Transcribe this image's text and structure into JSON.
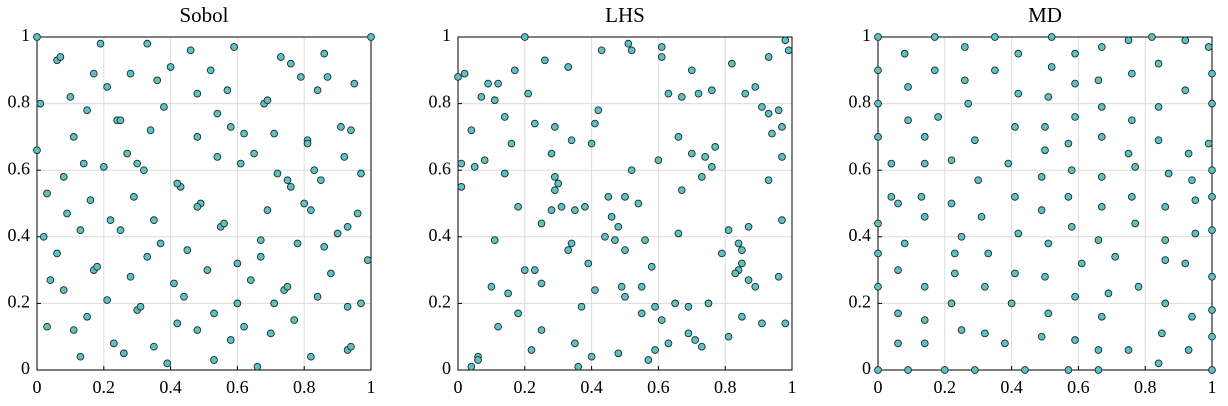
{
  "chart_data": [
    {
      "type": "scatter",
      "title": "Sobol",
      "color": "#62c0c0",
      "grid": true,
      "xlim": [
        0,
        1
      ],
      "ylim": [
        0,
        1
      ],
      "xticks": [
        0,
        0.2,
        0.4,
        0.6,
        0.8,
        1
      ],
      "yticks": [
        0,
        0.2,
        0.4,
        0.6,
        0.8,
        1
      ],
      "x": [
        0,
        1,
        0.06,
        0.07,
        0.19,
        0.33,
        0.46,
        0.59,
        0.73,
        0.76,
        0.86,
        0.01,
        0.1,
        0.17,
        0.21,
        0.28,
        0.36,
        0.4,
        0.52,
        0.48,
        0.57,
        0.68,
        0.69,
        0.79,
        0.84,
        0.87,
        0.95,
        0,
        0.11,
        0.15,
        0.24,
        0.25,
        0.2,
        0.38,
        0.34,
        0.3,
        0.32,
        0.48,
        0.54,
        0.58,
        0.62,
        0.71,
        0.81,
        0.81,
        0.91,
        0.94,
        0.92,
        0.03,
        0.08,
        0.14,
        0.27,
        0.43,
        0.42,
        0.54,
        0.61,
        0.65,
        0.75,
        0.72,
        0.76,
        0.83,
        0.85,
        0.97,
        0.09,
        0.16,
        0.29,
        0.35,
        0.49,
        0.48,
        0.55,
        0.56,
        0.69,
        0.8,
        0.82,
        0.96,
        0.02,
        0.13,
        0.25,
        0.22,
        0.37,
        0.45,
        0.6,
        0.67,
        0.67,
        0.78,
        0.86,
        0.9,
        0.93,
        0.06,
        0.17,
        0.18,
        0.33,
        0.28,
        0.51,
        0.64,
        0.74,
        0.75,
        0.88,
        0.99,
        0.04,
        0.08,
        0.21,
        0.3,
        0.31,
        0.41,
        0.44,
        0.53,
        0.6,
        0.71,
        0.84,
        0.93,
        0.97,
        0.03,
        0.15,
        0.11,
        0.42,
        0.48,
        0.62,
        0.7,
        0.77,
        0.13,
        0.23,
        0.26,
        0.35,
        0.39,
        0.53,
        0.58,
        0.66,
        0.82,
        0.93,
        0.94
      ],
      "values": [
        1,
        1,
        0.93,
        0.94,
        0.98,
        0.98,
        0.96,
        0.97,
        0.94,
        0.92,
        0.95,
        0.8,
        0.82,
        0.89,
        0.85,
        0.89,
        0.87,
        0.91,
        0.9,
        0.83,
        0.84,
        0.8,
        0.81,
        0.88,
        0.84,
        0.88,
        0.86,
        0.66,
        0.7,
        0.78,
        0.75,
        0.75,
        0.61,
        0.79,
        0.72,
        0.62,
        0.6,
        0.7,
        0.77,
        0.73,
        0.71,
        0.71,
        0.69,
        0.68,
        0.73,
        0.72,
        0.64,
        0.53,
        0.58,
        0.62,
        0.65,
        0.55,
        0.56,
        0.64,
        0.62,
        0.65,
        0.57,
        0.59,
        0.55,
        0.6,
        0.57,
        0.59,
        0.47,
        0.51,
        0.52,
        0.45,
        0.5,
        0.49,
        0.43,
        0.44,
        0.48,
        0.5,
        0.48,
        0.47,
        0.4,
        0.42,
        0.42,
        0.45,
        0.38,
        0.36,
        0.32,
        0.34,
        0.39,
        0.38,
        0.37,
        0.41,
        0.43,
        0.35,
        0.3,
        0.31,
        0.34,
        0.28,
        0.3,
        0.27,
        0.24,
        0.25,
        0.29,
        0.33,
        0.27,
        0.24,
        0.21,
        0.18,
        0.19,
        0.26,
        0.22,
        0.17,
        0.2,
        0.2,
        0.22,
        0.19,
        0.2,
        0.13,
        0.16,
        0.12,
        0.14,
        0.12,
        0.13,
        0.11,
        0.15,
        0.04,
        0.08,
        0.05,
        0.07,
        0.02,
        0.03,
        0.09,
        0.01,
        0.04,
        0.06,
        0.07
      ]
    },
    {
      "type": "scatter",
      "title": "LHS",
      "color": "#62c0c0",
      "grid": true,
      "xlim": [
        0,
        1
      ],
      "ylim": [
        0,
        1
      ],
      "xticks": [
        0,
        0.2,
        0.4,
        0.6,
        0.8,
        1
      ],
      "yticks": [
        0,
        0.2,
        0.4,
        0.6,
        0.8,
        1
      ],
      "x": [
        0,
        0.02,
        0.2,
        0.51,
        0.52,
        0.61,
        0.61,
        0.98,
        0.99,
        0.04,
        0.07,
        0.09,
        0.11,
        0.12,
        0.17,
        0.14,
        0.21,
        0.23,
        0.26,
        0.33,
        0.29,
        0.34,
        0.41,
        0.42,
        0.4,
        0.43,
        0.63,
        0.67,
        0.7,
        0.72,
        0.76,
        0.82,
        0.86,
        0.93,
        0.89,
        0.96,
        0.94,
        0.97,
        0.6,
        0.66,
        0.7,
        0.74,
        0.77,
        0.73,
        0.76,
        0.91,
        0.93,
        0.97,
        0.93,
        0.01,
        0.01,
        0.05,
        0.08,
        0.14,
        0.16,
        0.18,
        0.28,
        0.29,
        0.29,
        0.3,
        0.28,
        0.31,
        0.35,
        0.38,
        0.25,
        0.45,
        0.46,
        0.5,
        0.54,
        0.52,
        0.44,
        0.48,
        0.47,
        0.5,
        0.56,
        0.58,
        0.67,
        0.66,
        0.11,
        0.33,
        0.34,
        0.39,
        0.2,
        0.23,
        0.25,
        0.15,
        0.1,
        0.49,
        0.5,
        0.55,
        0.41,
        0.37,
        0.55,
        0.59,
        0.65,
        0.69,
        0.75,
        0.81,
        0.87,
        0.84,
        0.85,
        0.84,
        0.83,
        0.85,
        0.87,
        0.79,
        0.97,
        0.96,
        0.89,
        0.85,
        0.91,
        0.98,
        0.81,
        0.12,
        0.18,
        0.22,
        0.25,
        0.35,
        0.36,
        0.4,
        0.04,
        0.06,
        0.06,
        0.48,
        0.57,
        0.61,
        0.59,
        0.63,
        0.69,
        0.71,
        0.73
      ],
      "values": [
        0.88,
        0.89,
        1,
        0.98,
        0.96,
        0.97,
        0.94,
        0.99,
        0.96,
        0.72,
        0.82,
        0.86,
        0.81,
        0.86,
        0.9,
        0.76,
        0.83,
        0.74,
        0.93,
        0.91,
        0.73,
        0.69,
        0.74,
        0.78,
        0.68,
        0.96,
        0.83,
        0.82,
        0.9,
        0.83,
        0.84,
        0.92,
        0.83,
        0.94,
        0.85,
        0.78,
        0.71,
        0.73,
        0.63,
        0.7,
        0.65,
        0.64,
        0.67,
        0.58,
        0.61,
        0.79,
        0.77,
        0.64,
        0.57,
        0.62,
        0.55,
        0.61,
        0.63,
        0.59,
        0.68,
        0.49,
        0.65,
        0.58,
        0.54,
        0.56,
        0.48,
        0.49,
        0.48,
        0.49,
        0.44,
        0.52,
        0.46,
        0.52,
        0.5,
        0.6,
        0.4,
        0.43,
        0.39,
        0.36,
        0.39,
        0.31,
        0.54,
        0.41,
        0.39,
        0.36,
        0.38,
        0.32,
        0.3,
        0.3,
        0.26,
        0.23,
        0.25,
        0.25,
        0.22,
        0.25,
        0.24,
        0.19,
        0.17,
        0.19,
        0.2,
        0.19,
        0.2,
        0.42,
        0.43,
        0.38,
        0.36,
        0.3,
        0.29,
        0.32,
        0.27,
        0.35,
        0.45,
        0.28,
        0.25,
        0.16,
        0.14,
        0.14,
        0.1,
        0.13,
        0.17,
        0.06,
        0.12,
        0.08,
        0.01,
        0.04,
        0.01,
        0.04,
        0.03,
        0.05,
        0.03,
        0.15,
        0.06,
        0.08,
        0.11,
        0.09,
        0.07
      ]
    },
    {
      "type": "scatter",
      "title": "MD",
      "color": "#62c0c0",
      "grid": true,
      "xlim": [
        0,
        1
      ],
      "ylim": [
        0,
        1
      ],
      "xticks": [
        0,
        0.2,
        0.4,
        0.6,
        0.8,
        1
      ],
      "yticks": [
        0,
        0.2,
        0.4,
        0.6,
        0.8,
        1
      ],
      "x": [
        0,
        0,
        0,
        0,
        0,
        0,
        0,
        0,
        0.08,
        0.09,
        0.09,
        0.08,
        0.06,
        0.06,
        0.06,
        0.09,
        0.17,
        0.17,
        0.18,
        0.14,
        0.14,
        0.04,
        0.04,
        0.13,
        0.26,
        0.26,
        0.27,
        0.22,
        0.22,
        0.23,
        0.25,
        0.35,
        0.35,
        0.42,
        0.42,
        0.52,
        0.52,
        0.51,
        0.59,
        0.59,
        0.67,
        0.66,
        0.76,
        0.75,
        0.82,
        0.84,
        0.92,
        0.99,
        1,
        1,
        0.99,
        1,
        1,
        1,
        1,
        1,
        1,
        1,
        0.92,
        0.84,
        0.76,
        0.67,
        0.59,
        0.5,
        0.41,
        0.29,
        0.39,
        0.5,
        0.57,
        0.67,
        0.75,
        0.84,
        0.93,
        0.94,
        0.87,
        0.77,
        0.67,
        0.58,
        0.49,
        0.41,
        0.3,
        0.31,
        0.49,
        0.57,
        0.67,
        0.76,
        0.86,
        0.95,
        0.95,
        0.86,
        0.77,
        0.66,
        0.58,
        0.51,
        0.42,
        0.33,
        0.41,
        0.5,
        0.61,
        0.71,
        0.78,
        0.86,
        0.92,
        0.94,
        0.86,
        0.67,
        0.59,
        0.51,
        0.4,
        0.32,
        0.23,
        0.14,
        0.22,
        0.14,
        0.25,
        0.32,
        0.38,
        0.49,
        0.59,
        0.66,
        0.75,
        0.84,
        0.85,
        0.93,
        0.44,
        0.57,
        0.66,
        0.2,
        0.29,
        0.14,
        0.69,
        0.14,
        0.06
      ],
      "values": [
        1,
        0.9,
        0.8,
        0.7,
        0.44,
        0.35,
        0.25,
        0,
        0.95,
        0.85,
        0.75,
        0.38,
        0.3,
        0.17,
        0.08,
        0,
        1,
        0.9,
        0.76,
        0.7,
        0.62,
        0.62,
        0.52,
        0.52,
        0.97,
        0.87,
        0.8,
        0.63,
        0.5,
        0.35,
        0.4,
        1,
        0.9,
        0.95,
        0.83,
        1,
        0.91,
        0.82,
        0.95,
        0.86,
        0.97,
        0.87,
        0.89,
        0.99,
        1,
        0.92,
        0.99,
        0.97,
        0.89,
        0.8,
        0.68,
        0.6,
        0.52,
        0.42,
        0.28,
        0.18,
        0.1,
        0,
        0.84,
        0.79,
        0.75,
        0.79,
        0.76,
        0.73,
        0.73,
        0.69,
        0.62,
        0.66,
        0.68,
        0.7,
        0.65,
        0.69,
        0.65,
        0.57,
        0.59,
        0.61,
        0.58,
        0.6,
        0.58,
        0.52,
        0.57,
        0.46,
        0.48,
        0.52,
        0.49,
        0.52,
        0.49,
        0.51,
        0.41,
        0.39,
        0.44,
        0.39,
        0.43,
        0.38,
        0.41,
        0.35,
        0.29,
        0.28,
        0.32,
        0.34,
        0.25,
        0.33,
        0.32,
        0.16,
        0.2,
        0.16,
        0.22,
        0.17,
        0.2,
        0.25,
        0.29,
        0.25,
        0.2,
        0.15,
        0.12,
        0.11,
        0.08,
        0.1,
        0.09,
        0.06,
        0.06,
        0.02,
        0.11,
        0.06,
        0,
        0,
        0,
        0,
        0,
        0.08,
        0.23,
        0.46,
        0.5
      ]
    }
  ]
}
